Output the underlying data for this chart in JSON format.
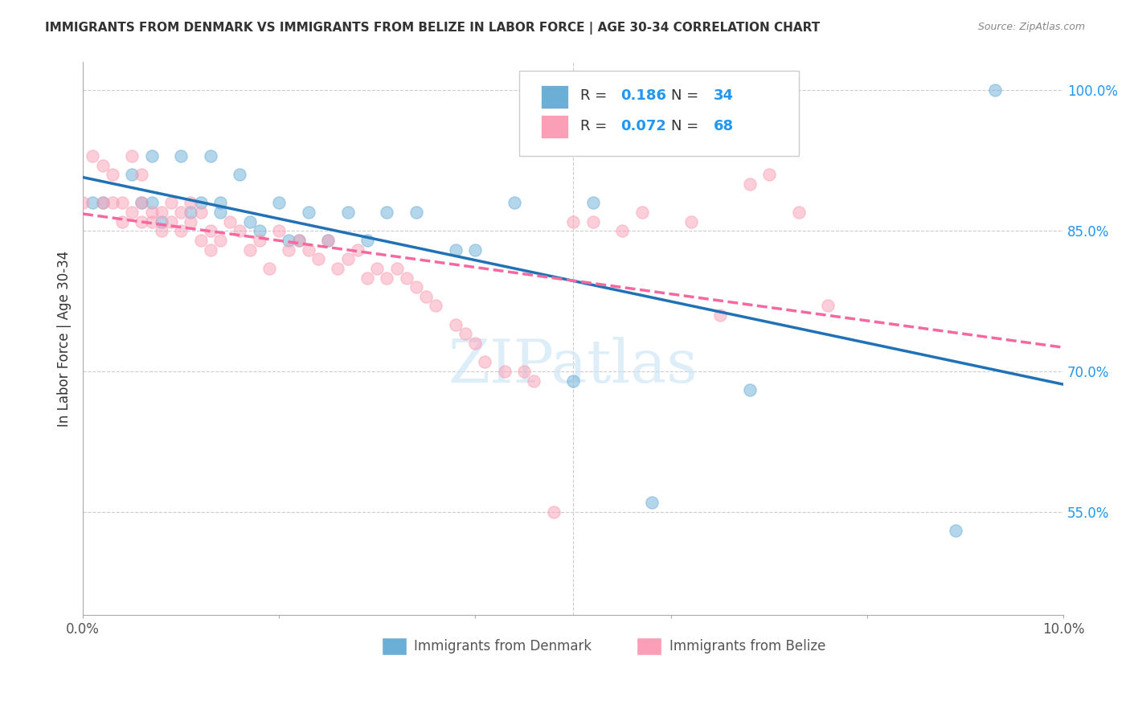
{
  "title": "IMMIGRANTS FROM DENMARK VS IMMIGRANTS FROM BELIZE IN LABOR FORCE | AGE 30-34 CORRELATION CHART",
  "source": "Source: ZipAtlas.com",
  "ylabel": "In Labor Force | Age 30-34",
  "y_ticks": [
    0.55,
    0.7,
    0.85,
    1.0
  ],
  "y_tick_labels": [
    "55.0%",
    "70.0%",
    "85.0%",
    "100.0%"
  ],
  "x_ticks": [
    0.0,
    0.02,
    0.04,
    0.06,
    0.08,
    0.1
  ],
  "x_tick_labels": [
    "0.0%",
    "",
    "",
    "",
    "",
    "10.0%"
  ],
  "xlim": [
    0.0,
    0.1
  ],
  "ylim": [
    0.44,
    1.03
  ],
  "legend_R_denmark": "0.186",
  "legend_N_denmark": "34",
  "legend_R_belize": "0.072",
  "legend_N_belize": "68",
  "color_denmark": "#6baed6",
  "color_belize": "#fa9fb5",
  "color_trendline_denmark": "#2171b5",
  "color_trendline_belize": "#f768a1",
  "color_text_blue": "#2196F3",
  "denmark_x": [
    0.001,
    0.002,
    0.005,
    0.006,
    0.007,
    0.007,
    0.008,
    0.01,
    0.011,
    0.012,
    0.013,
    0.014,
    0.014,
    0.016,
    0.017,
    0.018,
    0.02,
    0.021,
    0.022,
    0.023,
    0.025,
    0.027,
    0.029,
    0.031,
    0.034,
    0.038,
    0.04,
    0.044,
    0.05,
    0.052,
    0.058,
    0.068,
    0.089,
    0.093
  ],
  "denmark_y": [
    0.88,
    0.88,
    0.91,
    0.88,
    0.93,
    0.88,
    0.86,
    0.93,
    0.87,
    0.88,
    0.93,
    0.87,
    0.88,
    0.91,
    0.86,
    0.85,
    0.88,
    0.84,
    0.84,
    0.87,
    0.84,
    0.87,
    0.84,
    0.87,
    0.87,
    0.83,
    0.83,
    0.88,
    0.69,
    0.88,
    0.56,
    0.68,
    0.53,
    1.0
  ],
  "belize_x": [
    0.0,
    0.001,
    0.002,
    0.002,
    0.003,
    0.003,
    0.004,
    0.004,
    0.005,
    0.005,
    0.006,
    0.006,
    0.006,
    0.007,
    0.007,
    0.008,
    0.008,
    0.009,
    0.009,
    0.01,
    0.01,
    0.011,
    0.011,
    0.012,
    0.012,
    0.013,
    0.013,
    0.014,
    0.015,
    0.016,
    0.017,
    0.018,
    0.019,
    0.02,
    0.021,
    0.022,
    0.023,
    0.024,
    0.025,
    0.026,
    0.027,
    0.028,
    0.029,
    0.03,
    0.031,
    0.032,
    0.033,
    0.034,
    0.035,
    0.036,
    0.038,
    0.039,
    0.04,
    0.041,
    0.043,
    0.045,
    0.046,
    0.048,
    0.05,
    0.052,
    0.055,
    0.057,
    0.062,
    0.065,
    0.068,
    0.07,
    0.073,
    0.076
  ],
  "belize_y": [
    0.88,
    0.93,
    0.88,
    0.92,
    0.88,
    0.91,
    0.86,
    0.88,
    0.87,
    0.93,
    0.86,
    0.88,
    0.91,
    0.86,
    0.87,
    0.85,
    0.87,
    0.86,
    0.88,
    0.85,
    0.87,
    0.86,
    0.88,
    0.84,
    0.87,
    0.83,
    0.85,
    0.84,
    0.86,
    0.85,
    0.83,
    0.84,
    0.81,
    0.85,
    0.83,
    0.84,
    0.83,
    0.82,
    0.84,
    0.81,
    0.82,
    0.83,
    0.8,
    0.81,
    0.8,
    0.81,
    0.8,
    0.79,
    0.78,
    0.77,
    0.75,
    0.74,
    0.73,
    0.71,
    0.7,
    0.7,
    0.69,
    0.55,
    0.86,
    0.86,
    0.85,
    0.87,
    0.86,
    0.76,
    0.9,
    0.91,
    0.87,
    0.77
  ],
  "marker_size": 120,
  "marker_alpha": 0.5,
  "marker_edge_width": 1.0,
  "watermark": "ZIPatlas",
  "legend_left_bottom": "Immigrants from Denmark",
  "legend_right_bottom": "Immigrants from Belize"
}
